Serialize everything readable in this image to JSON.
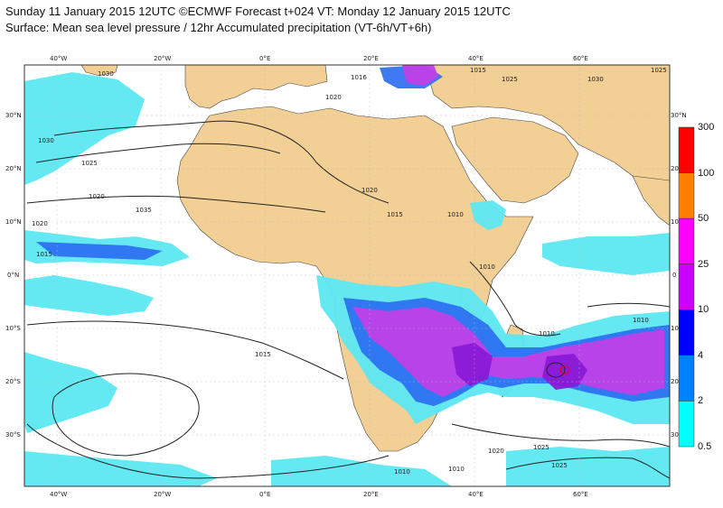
{
  "header": {
    "title_line1": "Sunday 11 January 2015 12UTC ©ECMWF Forecast t+024 VT: Monday 12 January 2015 12UTC",
    "title_line2": "Surface: Mean sea level pressure / 12hr Accumulated precipitation (VT-6h/VT+6h)"
  },
  "axes": {
    "lon_labels": [
      "40°W",
      "20°W",
      "0°E",
      "20°E",
      "40°E",
      "60°E"
    ],
    "lat_labels_left": [
      "30°N",
      "20°N",
      "10°N",
      "0°N",
      "10°S",
      "20°S",
      "30°S"
    ],
    "lat_labels_right": [
      "30°N",
      "20",
      "10",
      "0",
      "10",
      "20",
      "30"
    ]
  },
  "isobar_labels": [
    "1030",
    "1030",
    "1025",
    "1020",
    "1015",
    "1015",
    "1020",
    "1025",
    "1030",
    "1025",
    "1020",
    "1015",
    "1010",
    "1010",
    "1010",
    "1010",
    "1015",
    "1010",
    "1010",
    "1020",
    "1025",
    "1016",
    "1020",
    "1025",
    "1035"
  ],
  "colorbar": {
    "levels": [
      "300",
      "100",
      "50",
      "25",
      "10",
      "4",
      "2",
      "0.5"
    ],
    "colors": [
      "#ff0000",
      "#ff8000",
      "#ff00ff",
      "#cc00ff",
      "#0000ff",
      "#0080ff",
      "#00ffff"
    ]
  },
  "colors": {
    "land": "#f2cf94",
    "ocean": "#ffffff",
    "precip_light": "#5ce8f2",
    "precip_mid": "#2a6bf2",
    "precip_heavy": "#c040e8",
    "precip_dark": "#8a1ad8"
  }
}
